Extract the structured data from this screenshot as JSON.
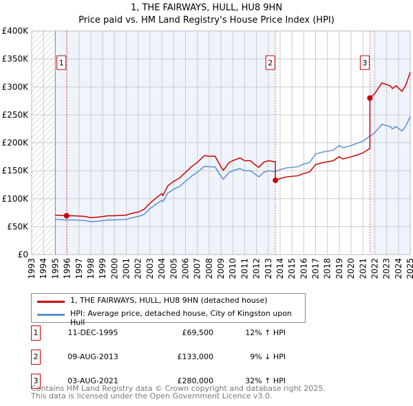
{
  "chart_data": {
    "type": "line",
    "title": "1, THE FAIRWAYS, HULL, HU8 9HN",
    "subtitle": "Price paid vs. HM Land Registry's House Price Index (HPI)",
    "xlim": [
      1993,
      2025
    ],
    "ylim": [
      0,
      400000
    ],
    "x_ticks": [
      "1993",
      "1994",
      "1995",
      "1996",
      "1997",
      "1998",
      "1999",
      "2000",
      "2001",
      "2002",
      "2003",
      "2004",
      "2005",
      "2006",
      "2007",
      "2008",
      "2009",
      "2010",
      "2011",
      "2012",
      "2013",
      "2014",
      "2015",
      "2016",
      "2017",
      "2018",
      "2019",
      "2020",
      "2021",
      "2022",
      "2023",
      "2024",
      "2025"
    ],
    "y_ticks": [
      {
        "v": 0,
        "label": "£0"
      },
      {
        "v": 50000,
        "label": "£50K"
      },
      {
        "v": 100000,
        "label": "£100K"
      },
      {
        "v": 150000,
        "label": "£150K"
      },
      {
        "v": 200000,
        "label": "£200K"
      },
      {
        "v": 250000,
        "label": "£250K"
      },
      {
        "v": 300000,
        "label": "£300K"
      },
      {
        "v": 350000,
        "label": "£350K"
      },
      {
        "v": 400000,
        "label": "£400K"
      }
    ],
    "grid": true,
    "series": [
      {
        "name": "1, THE FAIRWAYS, HULL, HU8 9HN (detached house)",
        "color": "#cc0000",
        "x": [
          1995.0,
          1995.95,
          1996.5,
          1997.5,
          1998,
          1998.7,
          1999.5,
          2000,
          2001,
          2001.5,
          2002,
          2002.5,
          2003,
          2003.5,
          2004,
          2004.1,
          2004.5,
          2005,
          2005.5,
          2006,
          2006.5,
          2007,
          2007.6,
          2008,
          2008.5,
          2009,
          2009.2,
          2009.7,
          2010,
          2010.6,
          2011,
          2011.5,
          2011.8,
          2012.2,
          2012.6,
          2013,
          2013.6,
          2013.6,
          2014,
          2014.5,
          2015.5,
          2016,
          2016.5,
          2017,
          2017.5,
          2018,
          2018.5,
          2019,
          2019.3,
          2020,
          2020.5,
          2021,
          2021.59,
          2021.59,
          2022,
          2022.6,
          2023.3,
          2023.5,
          2023.8,
          2024.3,
          2024.6,
          2025
        ],
        "y": [
          70600,
          69500,
          69500,
          68300,
          66000,
          67200,
          69500,
          69500,
          70600,
          74000,
          76000,
          81000,
          92000,
          101000,
          109000,
          106000,
          123000,
          131000,
          137000,
          147000,
          157000,
          165000,
          177000,
          176000,
          176000,
          157000,
          151000,
          165000,
          168000,
          173000,
          168000,
          168000,
          162000,
          156000,
          165000,
          168000,
          166000,
          133000,
          136000,
          139000,
          141000,
          145000,
          148000,
          161000,
          164000,
          166000,
          168000,
          175000,
          171000,
          175000,
          178000,
          182000,
          190000,
          280000,
          288000,
          307000,
          302000,
          297000,
          302000,
          292000,
          302000,
          326000
        ]
      },
      {
        "name": "HPI: Average price, detached house, City of Kingston upon Hull",
        "color": "#5b8fd4",
        "x": [
          1995.0,
          1995.95,
          1996.5,
          1997.5,
          1998,
          1998.7,
          1999.5,
          2000,
          2001,
          2001.5,
          2002,
          2002.5,
          2003,
          2003.5,
          2004,
          2004.1,
          2004.5,
          2005,
          2005.5,
          2006,
          2006.5,
          2007,
          2007.6,
          2008,
          2008.5,
          2009,
          2009.2,
          2009.7,
          2010,
          2010.6,
          2011,
          2011.5,
          2011.8,
          2012.2,
          2012.6,
          2013,
          2013.6,
          2014,
          2014.5,
          2015.5,
          2016,
          2016.5,
          2017,
          2017.5,
          2018,
          2018.5,
          2019,
          2019.3,
          2020,
          2020.5,
          2021,
          2021.59,
          2022,
          2022.6,
          2023.3,
          2023.5,
          2023.8,
          2024.3,
          2024.6,
          2025
        ],
        "y": [
          63000,
          62000,
          62000,
          61000,
          59000,
          60000,
          62000,
          62000,
          63000,
          66000,
          68000,
          72000,
          82000,
          90000,
          97000,
          95000,
          110000,
          117000,
          122000,
          131000,
          140000,
          147000,
          158000,
          157000,
          157000,
          140000,
          135000,
          147000,
          150000,
          154000,
          150000,
          150000,
          145000,
          139000,
          147000,
          150000,
          148500,
          152000,
          155000,
          157000,
          162000,
          165000,
          180000,
          183000,
          185000,
          187000,
          195000,
          191000,
          195000,
          199000,
          203000,
          212000,
          218000,
          233000,
          229000,
          225000,
          229000,
          221000,
          229000,
          247000
        ]
      }
    ],
    "sales": [
      {
        "label": "1",
        "x": 1995.95,
        "price": 69500,
        "date": "11-DEC-1995",
        "price_text": "£69,500",
        "hpi_text": "12% ↑ HPI"
      },
      {
        "label": "2",
        "x": 2013.61,
        "price": 133000,
        "date": "09-AUG-2013",
        "price_text": "£133,000",
        "hpi_text": "9% ↓ HPI"
      },
      {
        "label": "3",
        "x": 2021.59,
        "price": 280000,
        "date": "03-AUG-2021",
        "price_text": "£280,000",
        "hpi_text": "32% ↑ HPI"
      }
    ],
    "shaded_ranges": [
      [
        1995,
        2013.61
      ],
      [
        2021.59,
        2025
      ]
    ],
    "hatched_range": [
      1993,
      1995
    ]
  },
  "legend": {
    "red": "1, THE FAIRWAYS, HULL, HU8 9HN (detached house)",
    "blue": "HPI: Average price, detached house, City of Kingston upon Hull"
  },
  "footer": {
    "line1": "Contains HM Land Registry data © Crown copyright and database right 2025.",
    "line2": "This data is licensed under the Open Government Licence v3.0."
  }
}
